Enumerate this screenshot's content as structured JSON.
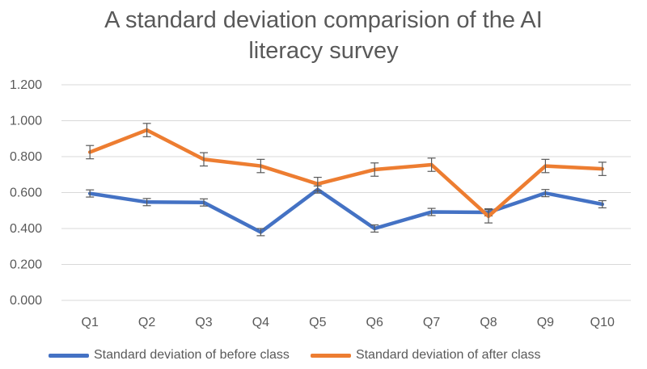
{
  "chart_data": {
    "type": "line",
    "title": "A standard deviation comparision of the AI literacy survey",
    "title_lines": [
      "A standard deviation comparision of the AI",
      "literacy survey"
    ],
    "categories": [
      "Q1",
      "Q2",
      "Q3",
      "Q4",
      "Q5",
      "Q6",
      "Q7",
      "Q8",
      "Q9",
      "Q10"
    ],
    "ylim": [
      0,
      1.2
    ],
    "yticks": [
      "0.000",
      "0.200",
      "0.400",
      "0.600",
      "0.800",
      "1.000",
      "1.200"
    ],
    "ytick_values": [
      0,
      0.2,
      0.4,
      0.6,
      0.8,
      1.0,
      1.2
    ],
    "grid": true,
    "legend_position": "bottom",
    "series": [
      {
        "name": "Standard deviation of before class",
        "color": "#4472c4",
        "values": [
          0.595,
          0.547,
          0.545,
          0.38,
          0.617,
          0.4,
          0.492,
          0.49,
          0.597,
          0.535
        ],
        "error": [
          0.02,
          0.02,
          0.02,
          0.02,
          0.02,
          0.02,
          0.02,
          0.02,
          0.02,
          0.02
        ]
      },
      {
        "name": "Standard deviation of after class",
        "color": "#ed7d31",
        "values": [
          0.825,
          0.948,
          0.785,
          0.748,
          0.648,
          0.728,
          0.755,
          0.468,
          0.748,
          0.732
        ],
        "error": [
          0.037,
          0.037,
          0.037,
          0.037,
          0.037,
          0.037,
          0.037,
          0.037,
          0.037,
          0.037
        ]
      }
    ]
  },
  "colors": {
    "grid": "#d9d9d9",
    "axis_text": "#595959",
    "error_bar": "#595959"
  }
}
